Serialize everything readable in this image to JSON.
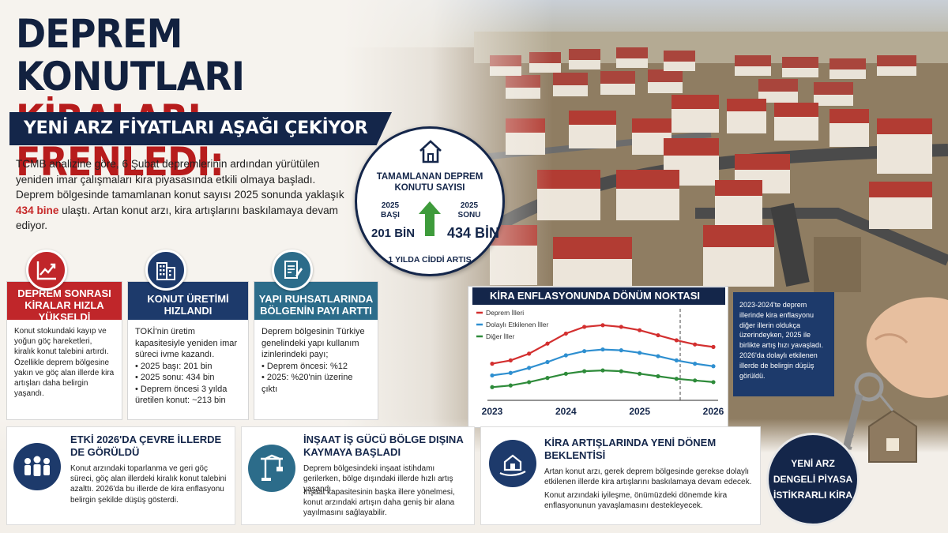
{
  "headline": {
    "line1": "DEPREM KONUTLARI",
    "line2": "KİRALARI FRENLEDİ:",
    "subtitle": "YENİ ARZ FİYATLARI AŞAĞI ÇEKİYOR"
  },
  "intro": {
    "part1": "TCMB analizine göre, 6 Şubat depremlerinin ardından yürütülen yeniden imar çalışmaları kira piyasasında etkili olmaya başladı. Deprem bölgesinde tamamlanan konut sayısı 2025 sonunda yaklaşık ",
    "highlight": "434 bine",
    "part2": " ulaştı. Artan konut arzı, kira artışlarını baskılamaya devam ediyor."
  },
  "circle": {
    "title": "TAMAMLANAN DEPREM KONUTU SAYISI",
    "left_year": "2025 BAŞI",
    "left_value": "201 BİN",
    "right_year": "2025 SONU",
    "right_value": "434 BİN",
    "footer": "1 YILDA CİDDİ ARTIŞ"
  },
  "cards": [
    {
      "title": "DEPREM SONRASI KİRALAR HIZLA YÜKSELDİ",
      "body": "Konut stokundaki kayıp ve yoğun göç hareketleri, kiralık konut talebini artırdı. Özellikle deprem bölgesine yakın ve göç alan illerde kira artışları daha belirgin yaşandı.",
      "icon": "chart-up-icon",
      "color": "#c0262a"
    },
    {
      "title": "KONUT ÜRETİMİ HIZLANDI",
      "intro": "TOKİ'nin üretim kapasitesiyle yeniden imar süreci ivme kazandı.",
      "bullets": [
        "2025 başı: 201 bin",
        "2025 sonu: 434 bin",
        "Deprem öncesi 3 yılda üretilen konut: ~213 bin"
      ],
      "icon": "building-icon",
      "color": "#1d3a6b"
    },
    {
      "title": "YAPI RUHSATLARINDA BÖLGENİN PAYI ARTTI",
      "intro": "Deprem bölgesinin Türkiye genelindeki yapı kullanım izinlerindeki payı;",
      "bullets": [
        "Deprem öncesi: %12",
        "2025: %20'nin üzerine çıktı"
      ],
      "icon": "document-icon",
      "color": "#2c6c8a"
    }
  ],
  "chart_note": "2023-2024'te deprem illerinde kira enflasyonu diğer illerin oldukça üzerindeyken, 2025 ile birlikte artış hızı yavaşladı. 2026'da dolaylı etkilenen illerde de belirgin düşüş görüldü.",
  "chart_data": {
    "type": "line",
    "title": "KİRA ENFLASYONUNDA DÖNÜM NOKTASI",
    "categories": [
      "2023",
      "2024",
      "2025",
      "2026"
    ],
    "x": [
      2023.0,
      2023.25,
      2023.5,
      2023.75,
      2024.0,
      2024.25,
      2024.5,
      2024.75,
      2025.0,
      2025.25,
      2025.5,
      2025.75,
      2026.0
    ],
    "series": [
      {
        "name": "Deprem İlleri",
        "color": "#d32f2f",
        "values": [
          40,
          44,
          52,
          64,
          76,
          84,
          86,
          84,
          80,
          74,
          68,
          63,
          60
        ]
      },
      {
        "name": "Dolaylı Etkilenen İller",
        "color": "#2e8fd0",
        "values": [
          26,
          29,
          35,
          42,
          50,
          55,
          57,
          56,
          53,
          49,
          44,
          40,
          37
        ]
      },
      {
        "name": "Diğer İller",
        "color": "#2e8b3a",
        "values": [
          12,
          14,
          18,
          23,
          28,
          31,
          32,
          31,
          28,
          25,
          22,
          20,
          18
        ]
      }
    ],
    "ylim": [
      0,
      100
    ],
    "grid": false,
    "legend": "top-left",
    "marker_year": "2025 mid"
  },
  "bottom": [
    {
      "title": "ETKİ 2026'DA ÇEVRE İLLERDE DE GÖRÜLDÜ",
      "text": "Konut arzındaki toparlanma ve geri göç süreci, göç alan illerdeki kiralık konut talebini azalttı. 2026'da bu illerde de kira enflasyonu belirgin şekilde düşüş gösterdi.",
      "icon": "people-icon"
    },
    {
      "title": "İNŞAAT İŞ GÜCÜ BÖLGE DIŞINA KAYMAYA BAŞLADI",
      "text1": "Deprem bölgesindeki inşaat istihdamı gerilerken, bölge dışındaki illerde hızlı artış yaşandı.",
      "text2": "İnşaat kapasitesinin başka illere yönelmesi, konut arzındaki artışın daha geniş bir alana yayılmasını sağlayabilir.",
      "icon": "crane-icon"
    },
    {
      "title": "KİRA ARTIŞLARINDA YENİ DÖNEM BEKLENTİSİ",
      "text1": "Artan konut arzı, gerek deprem bölgesinde gerekse dolaylı etkilenen illerde kira artışlarını baskılamaya devam edecek.",
      "text2": "Konut arzındaki iyileşme, önümüzdeki dönemde kira enflasyonunun yavaşlamasını destekleyecek.",
      "icon": "house-hand-icon"
    }
  ],
  "badge": {
    "line1": "YENİ ARZ",
    "line2": "DENGELİ PİYASA",
    "line3": "İSTİKRARLI KİRA"
  }
}
